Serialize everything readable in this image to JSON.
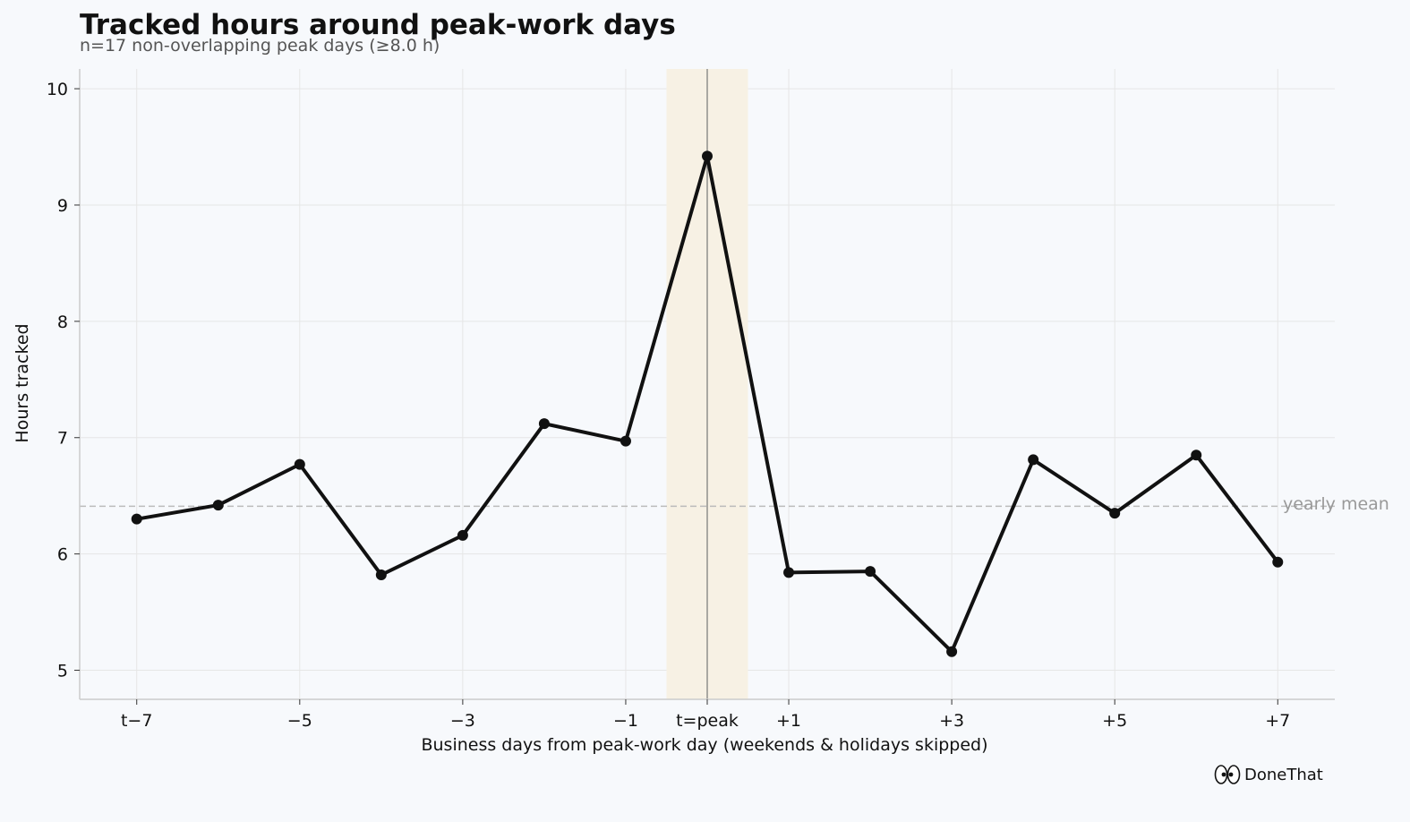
{
  "title": "Tracked hours around peak-work days",
  "subtitle": "n=17 non-overlapping peak days (≥8.0 h)",
  "brand": {
    "name": "DoneThat",
    "icon": "eyes-icon"
  },
  "colors": {
    "background": "#f7f9fc",
    "line": "#111111",
    "grid": "#e6e6e6",
    "peak_band": "#f7f1e4",
    "peak_line": "#777777",
    "mean_line": "#bbbbbb",
    "axis": "#cccccc"
  },
  "chart_data": {
    "type": "line",
    "title": "Tracked hours around peak-work days",
    "subtitle": "n=17 non-overlapping peak days (≥8.0 h)",
    "xlabel": "Business days from peak-work day (weekends & holidays skipped)",
    "ylabel": "Hours tracked",
    "x": [
      -7,
      -6,
      -5,
      -4,
      -3,
      -2,
      -1,
      0,
      1,
      2,
      3,
      4,
      5,
      6,
      7
    ],
    "values": [
      6.3,
      6.42,
      6.77,
      5.82,
      6.16,
      7.12,
      6.97,
      9.42,
      5.84,
      5.85,
      5.16,
      6.81,
      6.35,
      6.85,
      5.93
    ],
    "xlim": [
      -7.7,
      7.7
    ],
    "ylim": [
      4.75,
      10.17
    ],
    "xticks": [
      -7,
      -5,
      -3,
      -1,
      0,
      1,
      3,
      5,
      7
    ],
    "xtick_labels": [
      "t−7",
      "−5",
      "−3",
      "−1",
      "t=peak",
      "+1",
      "+3",
      "+5",
      "+7"
    ],
    "yticks": [
      5,
      6,
      7,
      8,
      9,
      10
    ],
    "ytick_labels": [
      "5",
      "6",
      "7",
      "8",
      "9",
      "10"
    ],
    "yearly_mean": 6.41,
    "yearly_mean_label": "yearly mean",
    "peak_band": [
      -0.5,
      0.5
    ],
    "grid": true,
    "legend": "none"
  }
}
